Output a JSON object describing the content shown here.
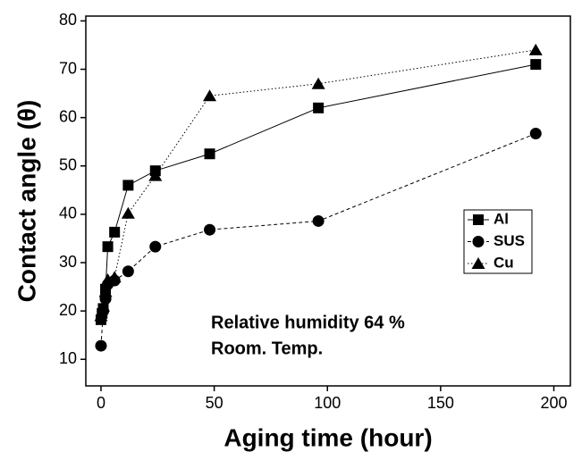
{
  "chart_data": {
    "type": "line",
    "x_label": "Aging time (hour)",
    "y_label": "Contact angle (θ)",
    "xlim": [
      -6.7,
      207.3
    ],
    "ylim": [
      4.5,
      81
    ],
    "xticks": [
      0,
      50,
      100,
      150,
      200
    ],
    "yticks": [
      10,
      20,
      30,
      40,
      50,
      60,
      70,
      80
    ],
    "annotations": [
      "Relative humidity 64 %",
      "Room. Temp."
    ],
    "series": [
      {
        "name": "Al",
        "color": "#000000",
        "marker": "square",
        "dash": "solid",
        "x": [
          0,
          0.5,
          1,
          2,
          3,
          6,
          12,
          24,
          48,
          96,
          192
        ],
        "values": [
          18.2,
          19.5,
          20.5,
          24.5,
          33.3,
          36.3,
          46,
          49,
          52.5,
          62,
          71
        ]
      },
      {
        "name": "SUS",
        "color": "#000000",
        "marker": "circle",
        "dash": "dashed",
        "x": [
          0,
          1,
          2,
          3,
          6,
          12,
          24,
          48,
          96,
          192
        ],
        "values": [
          12.8,
          20,
          22.5,
          25.5,
          26.3,
          28.2,
          33.3,
          36.8,
          38.6,
          56.7
        ]
      },
      {
        "name": "Cu",
        "color": "#000000",
        "marker": "triangle",
        "dash": "dotted",
        "x": [
          0,
          1,
          2,
          3,
          6,
          12,
          24,
          48,
          96,
          192
        ],
        "values": [
          19,
          21,
          24,
          26.5,
          27,
          40.2,
          48,
          64.5,
          67,
          74
        ]
      }
    ]
  }
}
